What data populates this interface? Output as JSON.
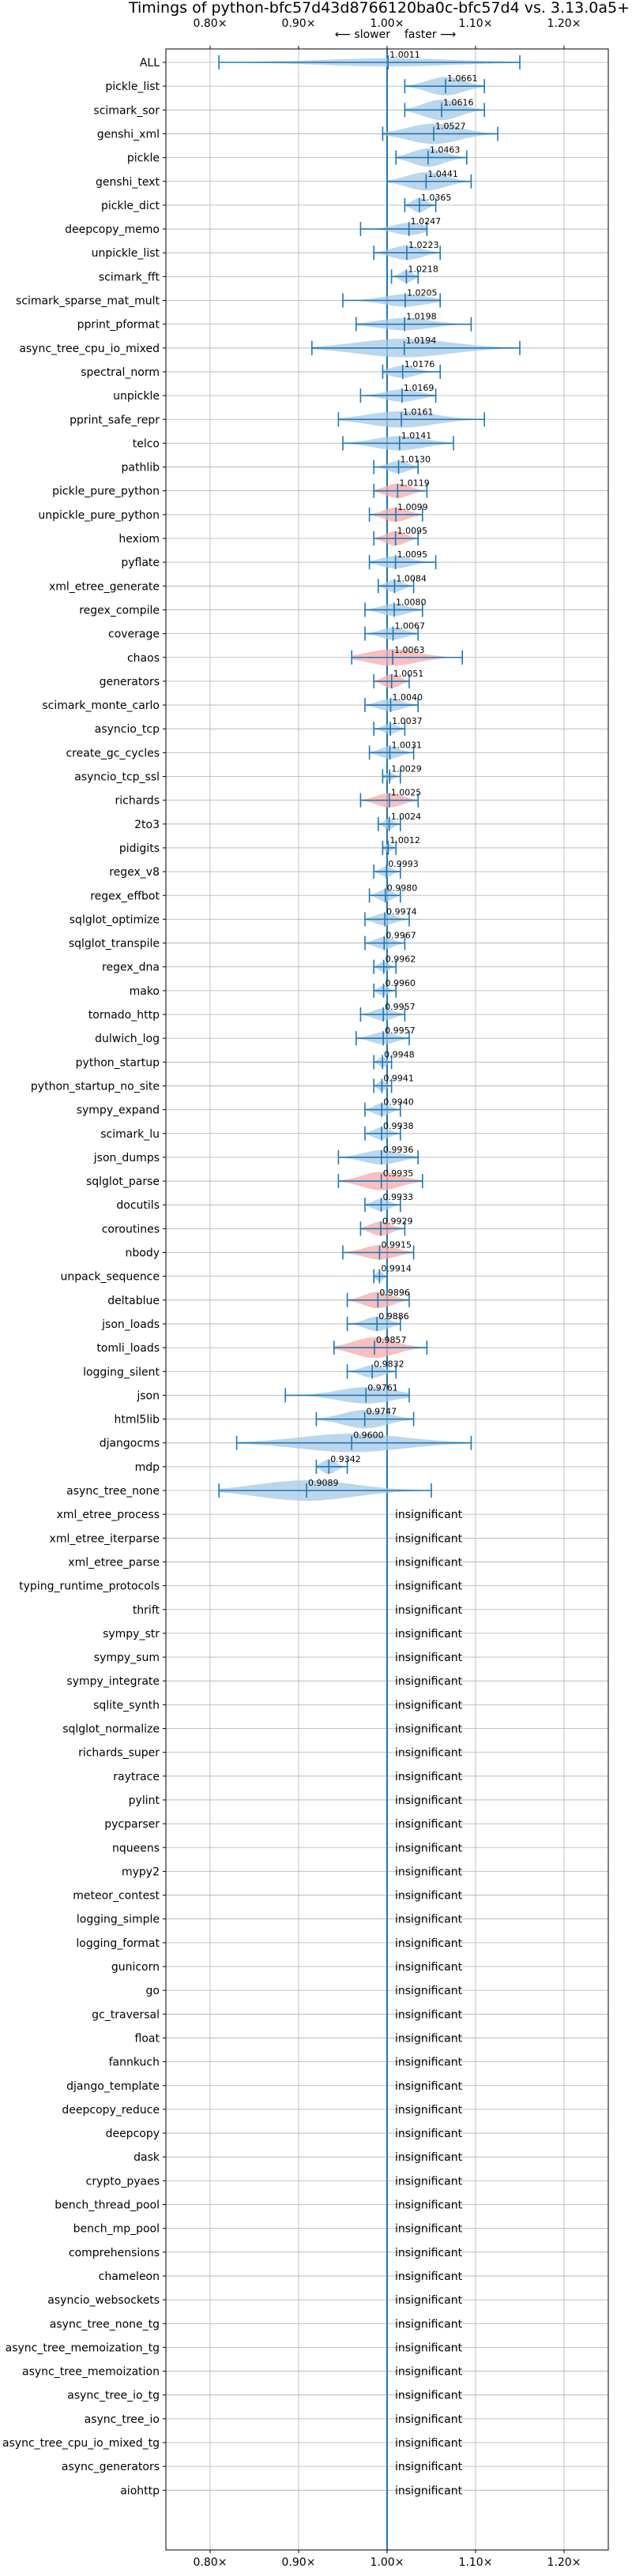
{
  "chart_data": {
    "type": "violin",
    "title": "Timings of python-bfc57d43d8766120ba0c-bfc57d4 vs. 3.13.0a5+",
    "subtitle_left": "⟵ slower",
    "subtitle_right": "faster ⟶",
    "xlim": [
      0.75,
      1.25
    ],
    "xticks": [
      0.8,
      0.9,
      1.0,
      1.1,
      1.2
    ],
    "xtick_labels": [
      "0.80×",
      "0.90×",
      "1.00×",
      "1.10×",
      "1.20×"
    ],
    "grid": true,
    "reference_line": 1.0,
    "insignificant_label": "insignificant",
    "benchmarks": [
      {
        "name": "ALL",
        "value": 1.0011,
        "label": "1.0011",
        "err": [
          0.81,
          1.15
        ],
        "width": 0.4,
        "color": "blue"
      },
      {
        "name": "pickle_list",
        "value": 1.0661,
        "label": "1.0661",
        "err": [
          1.02,
          1.11
        ],
        "width": 0.9,
        "color": "blue"
      },
      {
        "name": "scimark_sor",
        "value": 1.0616,
        "label": "1.0616",
        "err": [
          1.02,
          1.11
        ],
        "width": 1.0,
        "color": "blue"
      },
      {
        "name": "genshi_xml",
        "value": 1.0527,
        "label": "1.0527",
        "err": [
          0.995,
          1.125
        ],
        "width": 1.0,
        "color": "blue"
      },
      {
        "name": "pickle",
        "value": 1.0463,
        "label": "1.0463",
        "err": [
          1.01,
          1.09
        ],
        "width": 0.9,
        "color": "blue"
      },
      {
        "name": "genshi_text",
        "value": 1.0441,
        "label": "1.0441",
        "err": [
          1.0,
          1.095
        ],
        "width": 0.9,
        "color": "blue"
      },
      {
        "name": "pickle_dict",
        "value": 1.0365,
        "label": "1.0365",
        "err": [
          1.02,
          1.055
        ],
        "width": 0.7,
        "color": "blue"
      },
      {
        "name": "deepcopy_memo",
        "value": 1.0247,
        "label": "1.0247",
        "err": [
          0.97,
          1.045
        ],
        "width": 0.6,
        "color": "blue"
      },
      {
        "name": "unpickle_list",
        "value": 1.0223,
        "label": "1.0223",
        "err": [
          0.985,
          1.06
        ],
        "width": 0.7,
        "color": "blue"
      },
      {
        "name": "scimark_fft",
        "value": 1.0218,
        "label": "1.0218",
        "err": [
          1.005,
          1.035
        ],
        "width": 0.6,
        "color": "blue"
      },
      {
        "name": "scimark_sparse_mat_mult",
        "value": 1.0205,
        "label": "1.0205",
        "err": [
          0.95,
          1.06
        ],
        "width": 0.6,
        "color": "blue"
      },
      {
        "name": "pprint_pformat",
        "value": 1.0198,
        "label": "1.0198",
        "err": [
          0.965,
          1.095
        ],
        "width": 0.6,
        "color": "blue"
      },
      {
        "name": "async_tree_cpu_io_mixed",
        "value": 1.0194,
        "label": "1.0194",
        "err": [
          0.915,
          1.15
        ],
        "width": 0.9,
        "color": "blue"
      },
      {
        "name": "spectral_norm",
        "value": 1.0176,
        "label": "1.0176",
        "err": [
          0.995,
          1.06
        ],
        "width": 0.6,
        "color": "blue"
      },
      {
        "name": "unpickle",
        "value": 1.0169,
        "label": "1.0169",
        "err": [
          0.97,
          1.055
        ],
        "width": 0.6,
        "color": "blue"
      },
      {
        "name": "pprint_safe_repr",
        "value": 1.0161,
        "label": "1.0161",
        "err": [
          0.945,
          1.11
        ],
        "width": 0.8,
        "color": "blue"
      },
      {
        "name": "telco",
        "value": 1.0141,
        "label": "1.0141",
        "err": [
          0.95,
          1.075
        ],
        "width": 0.7,
        "color": "blue"
      },
      {
        "name": "pathlib",
        "value": 1.013,
        "label": "1.0130",
        "err": [
          0.985,
          1.035
        ],
        "width": 0.6,
        "color": "blue"
      },
      {
        "name": "pickle_pure_python",
        "value": 1.0119,
        "label": "1.0119",
        "err": [
          0.985,
          1.045
        ],
        "width": 0.7,
        "color": "red"
      },
      {
        "name": "unpickle_pure_python",
        "value": 1.0099,
        "label": "1.0099",
        "err": [
          0.98,
          1.04
        ],
        "width": 0.7,
        "color": "red"
      },
      {
        "name": "hexiom",
        "value": 1.0095,
        "label": "1.0095",
        "err": [
          0.985,
          1.035
        ],
        "width": 0.7,
        "color": "red"
      },
      {
        "name": "pyflate",
        "value": 1.0095,
        "label": "1.0095",
        "err": [
          0.98,
          1.055
        ],
        "width": 0.6,
        "color": "blue"
      },
      {
        "name": "xml_etree_generate",
        "value": 1.0084,
        "label": "1.0084",
        "err": [
          0.99,
          1.03
        ],
        "width": 0.6,
        "color": "blue"
      },
      {
        "name": "regex_compile",
        "value": 1.008,
        "label": "1.0080",
        "err": [
          0.975,
          1.04
        ],
        "width": 0.6,
        "color": "blue"
      },
      {
        "name": "coverage",
        "value": 1.0067,
        "label": "1.0067",
        "err": [
          0.975,
          1.035
        ],
        "width": 0.6,
        "color": "blue"
      },
      {
        "name": "chaos",
        "value": 1.0063,
        "label": "1.0063",
        "err": [
          0.96,
          1.085
        ],
        "width": 0.8,
        "color": "red"
      },
      {
        "name": "generators",
        "value": 1.0051,
        "label": "1.0051",
        "err": [
          0.985,
          1.025
        ],
        "width": 0.7,
        "color": "red"
      },
      {
        "name": "scimark_monte_carlo",
        "value": 1.004,
        "label": "1.0040",
        "err": [
          0.975,
          1.035
        ],
        "width": 0.6,
        "color": "blue"
      },
      {
        "name": "asyncio_tcp",
        "value": 1.0037,
        "label": "1.0037",
        "err": [
          0.985,
          1.02
        ],
        "width": 0.5,
        "color": "blue"
      },
      {
        "name": "create_gc_cycles",
        "value": 1.0031,
        "label": "1.0031",
        "err": [
          0.98,
          1.03
        ],
        "width": 0.6,
        "color": "blue"
      },
      {
        "name": "asyncio_tcp_ssl",
        "value": 1.0029,
        "label": "1.0029",
        "err": [
          0.995,
          1.015
        ],
        "width": 0.4,
        "color": "blue"
      },
      {
        "name": "richards",
        "value": 1.0025,
        "label": "1.0025",
        "err": [
          0.97,
          1.035
        ],
        "width": 0.7,
        "color": "red"
      },
      {
        "name": "2to3",
        "value": 1.0024,
        "label": "1.0024",
        "err": [
          0.99,
          1.015
        ],
        "width": 0.5,
        "color": "blue"
      },
      {
        "name": "pidigits",
        "value": 1.0012,
        "label": "1.0012",
        "err": [
          0.995,
          1.01
        ],
        "width": 0.4,
        "color": "blue"
      },
      {
        "name": "regex_v8",
        "value": 0.9993,
        "label": "0.9993",
        "err": [
          0.985,
          1.015
        ],
        "width": 0.5,
        "color": "blue"
      },
      {
        "name": "regex_effbot",
        "value": 0.998,
        "label": "0.9980",
        "err": [
          0.98,
          1.015
        ],
        "width": 0.6,
        "color": "blue"
      },
      {
        "name": "sqlglot_optimize",
        "value": 0.9974,
        "label": "0.9974",
        "err": [
          0.975,
          1.025
        ],
        "width": 0.6,
        "color": "blue"
      },
      {
        "name": "sqlglot_transpile",
        "value": 0.9967,
        "label": "0.9967",
        "err": [
          0.975,
          1.02
        ],
        "width": 0.6,
        "color": "blue"
      },
      {
        "name": "regex_dna",
        "value": 0.9962,
        "label": "0.9962",
        "err": [
          0.985,
          1.01
        ],
        "width": 0.5,
        "color": "blue"
      },
      {
        "name": "mako",
        "value": 0.996,
        "label": "0.9960",
        "err": [
          0.985,
          1.01
        ],
        "width": 0.5,
        "color": "blue"
      },
      {
        "name": "tornado_http",
        "value": 0.9957,
        "label": "0.9957",
        "err": [
          0.97,
          1.02
        ],
        "width": 0.6,
        "color": "blue"
      },
      {
        "name": "dulwich_log",
        "value": 0.9957,
        "label": "0.9957",
        "err": [
          0.965,
          1.025
        ],
        "width": 0.6,
        "color": "blue"
      },
      {
        "name": "python_startup",
        "value": 0.9948,
        "label": "0.9948",
        "err": [
          0.985,
          1.005
        ],
        "width": 0.5,
        "color": "blue"
      },
      {
        "name": "python_startup_no_site",
        "value": 0.9941,
        "label": "0.9941",
        "err": [
          0.985,
          1.005
        ],
        "width": 0.5,
        "color": "blue"
      },
      {
        "name": "sympy_expand",
        "value": 0.994,
        "label": "0.9940",
        "err": [
          0.975,
          1.015
        ],
        "width": 0.6,
        "color": "blue"
      },
      {
        "name": "scimark_lu",
        "value": 0.9938,
        "label": "0.9938",
        "err": [
          0.975,
          1.015
        ],
        "width": 0.6,
        "color": "blue"
      },
      {
        "name": "json_dumps",
        "value": 0.9936,
        "label": "0.9936",
        "err": [
          0.945,
          1.035
        ],
        "width": 0.7,
        "color": "blue"
      },
      {
        "name": "sqlglot_parse",
        "value": 0.9935,
        "label": "0.9935",
        "err": [
          0.945,
          1.04
        ],
        "width": 0.9,
        "color": "red"
      },
      {
        "name": "docutils",
        "value": 0.9933,
        "label": "0.9933",
        "err": [
          0.975,
          1.015
        ],
        "width": 0.6,
        "color": "blue"
      },
      {
        "name": "coroutines",
        "value": 0.9929,
        "label": "0.9929",
        "err": [
          0.97,
          1.02
        ],
        "width": 0.7,
        "color": "red"
      },
      {
        "name": "nbody",
        "value": 0.9915,
        "label": "0.9915",
        "err": [
          0.95,
          1.03
        ],
        "width": 0.7,
        "color": "red"
      },
      {
        "name": "unpack_sequence",
        "value": 0.9914,
        "label": "0.9914",
        "err": [
          0.985,
          1.0
        ],
        "width": 0.5,
        "color": "blue"
      },
      {
        "name": "deltablue",
        "value": 0.9896,
        "label": "0.9896",
        "err": [
          0.955,
          1.025
        ],
        "width": 0.8,
        "color": "red"
      },
      {
        "name": "json_loads",
        "value": 0.9886,
        "label": "0.9886",
        "err": [
          0.955,
          1.015
        ],
        "width": 0.7,
        "color": "blue"
      },
      {
        "name": "tomli_loads",
        "value": 0.9857,
        "label": "0.9857",
        "err": [
          0.94,
          1.045
        ],
        "width": 1.0,
        "color": "red"
      },
      {
        "name": "logging_silent",
        "value": 0.9832,
        "label": "0.9832",
        "err": [
          0.955,
          1.01
        ],
        "width": 0.6,
        "color": "blue"
      },
      {
        "name": "json",
        "value": 0.9761,
        "label": "0.9761",
        "err": [
          0.885,
          1.025
        ],
        "width": 0.8,
        "color": "blue"
      },
      {
        "name": "html5lib",
        "value": 0.9747,
        "label": "0.9747",
        "err": [
          0.92,
          1.03
        ],
        "width": 0.9,
        "color": "blue"
      },
      {
        "name": "djangocms",
        "value": 0.96,
        "label": "0.9600",
        "err": [
          0.83,
          1.095
        ],
        "width": 0.9,
        "color": "blue"
      },
      {
        "name": "mdp",
        "value": 0.9342,
        "label": "0.9342",
        "err": [
          0.92,
          0.955
        ],
        "width": 0.7,
        "color": "blue"
      },
      {
        "name": "async_tree_none",
        "value": 0.9089,
        "label": "0.9089",
        "err": [
          0.81,
          1.05
        ],
        "width": 1.0,
        "color": "blue"
      },
      {
        "name": "xml_etree_process",
        "value": null
      },
      {
        "name": "xml_etree_iterparse",
        "value": null
      },
      {
        "name": "xml_etree_parse",
        "value": null
      },
      {
        "name": "typing_runtime_protocols",
        "value": null
      },
      {
        "name": "thrift",
        "value": null
      },
      {
        "name": "sympy_str",
        "value": null
      },
      {
        "name": "sympy_sum",
        "value": null
      },
      {
        "name": "sympy_integrate",
        "value": null
      },
      {
        "name": "sqlite_synth",
        "value": null
      },
      {
        "name": "sqlglot_normalize",
        "value": null
      },
      {
        "name": "richards_super",
        "value": null
      },
      {
        "name": "raytrace",
        "value": null
      },
      {
        "name": "pylint",
        "value": null
      },
      {
        "name": "pycparser",
        "value": null
      },
      {
        "name": "nqueens",
        "value": null
      },
      {
        "name": "mypy2",
        "value": null
      },
      {
        "name": "meteor_contest",
        "value": null
      },
      {
        "name": "logging_simple",
        "value": null
      },
      {
        "name": "logging_format",
        "value": null
      },
      {
        "name": "gunicorn",
        "value": null
      },
      {
        "name": "go",
        "value": null
      },
      {
        "name": "gc_traversal",
        "value": null
      },
      {
        "name": "float",
        "value": null
      },
      {
        "name": "fannkuch",
        "value": null
      },
      {
        "name": "django_template",
        "value": null
      },
      {
        "name": "deepcopy_reduce",
        "value": null
      },
      {
        "name": "deepcopy",
        "value": null
      },
      {
        "name": "dask",
        "value": null
      },
      {
        "name": "crypto_pyaes",
        "value": null
      },
      {
        "name": "bench_thread_pool",
        "value": null
      },
      {
        "name": "bench_mp_pool",
        "value": null
      },
      {
        "name": "comprehensions",
        "value": null
      },
      {
        "name": "chameleon",
        "value": null
      },
      {
        "name": "asyncio_websockets",
        "value": null
      },
      {
        "name": "async_tree_none_tg",
        "value": null
      },
      {
        "name": "async_tree_memoization_tg",
        "value": null
      },
      {
        "name": "async_tree_memoization",
        "value": null
      },
      {
        "name": "async_tree_io_tg",
        "value": null
      },
      {
        "name": "async_tree_io",
        "value": null
      },
      {
        "name": "async_tree_cpu_io_mixed_tg",
        "value": null
      },
      {
        "name": "async_generators",
        "value": null
      },
      {
        "name": "aiohttp",
        "value": null
      }
    ],
    "colors": {
      "violin_blue": "#a6c8e6",
      "violin_red": "#f5a9a9",
      "errorbar": "#1f77b4",
      "reference_line": "#1f77b4",
      "grid": "#b0b0b0",
      "axis": "#000000"
    }
  }
}
